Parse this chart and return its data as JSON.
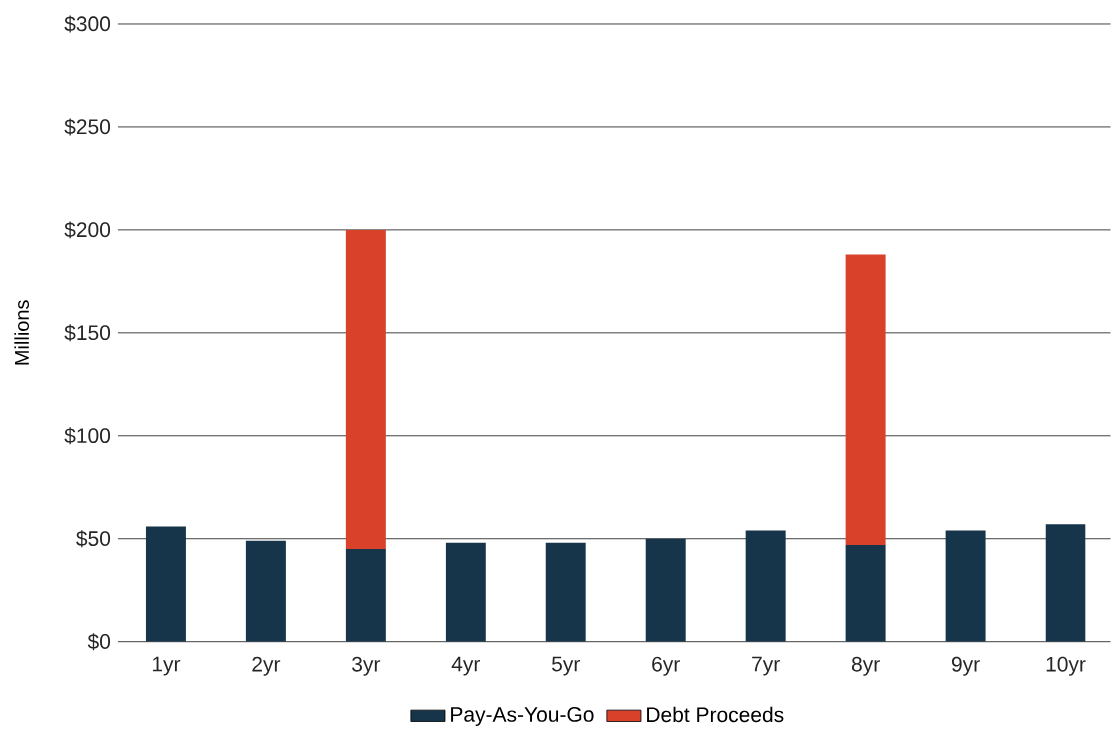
{
  "chart_data": {
    "type": "bar",
    "stacked": true,
    "ylabel": "Millions",
    "categories": [
      "1yr",
      "2yr",
      "3yr",
      "4yr",
      "5yr",
      "6yr",
      "7yr",
      "8yr",
      "9yr",
      "10yr"
    ],
    "series": [
      {
        "name": "Pay-As-You-Go",
        "color": "#17354a",
        "values": [
          56,
          49,
          45,
          48,
          48,
          50,
          54,
          47,
          54,
          57
        ]
      },
      {
        "name": "Debt Proceeds",
        "color": "#d9412b",
        "values": [
          null,
          null,
          155,
          null,
          null,
          null,
          null,
          141,
          null,
          null
        ]
      }
    ],
    "ylim": [
      0,
      300
    ],
    "yticks": [
      {
        "value": 0,
        "label": "$0"
      },
      {
        "value": 50,
        "label": "$50"
      },
      {
        "value": 100,
        "label": "$100"
      },
      {
        "value": 150,
        "label": "$150"
      },
      {
        "value": 200,
        "label": "$200"
      },
      {
        "value": 250,
        "label": "$250"
      },
      {
        "value": 300,
        "label": "$300"
      }
    ],
    "grid": "y",
    "legend": "bottom"
  }
}
